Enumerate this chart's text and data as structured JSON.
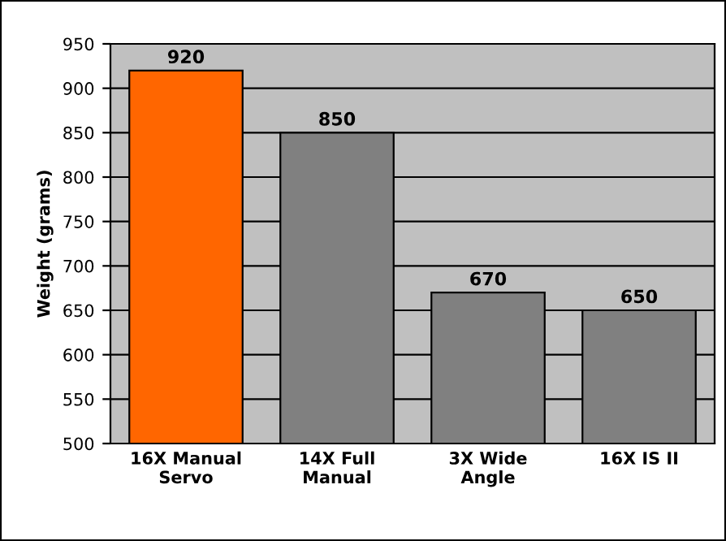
{
  "chart_data": {
    "type": "bar",
    "ylabel": "Weight (grams)",
    "categories": [
      "16X Manual Servo",
      "14X Full Manual",
      "3X Wide Angle",
      "16X IS II"
    ],
    "values": [
      920,
      850,
      670,
      650
    ],
    "colors": [
      "#ff6600",
      "#808080",
      "#808080",
      "#808080"
    ],
    "ylim": [
      500,
      950
    ],
    "yticks": [
      500,
      550,
      600,
      650,
      700,
      750,
      800,
      850,
      900,
      950
    ],
    "grid": "y",
    "data_labels": true
  }
}
